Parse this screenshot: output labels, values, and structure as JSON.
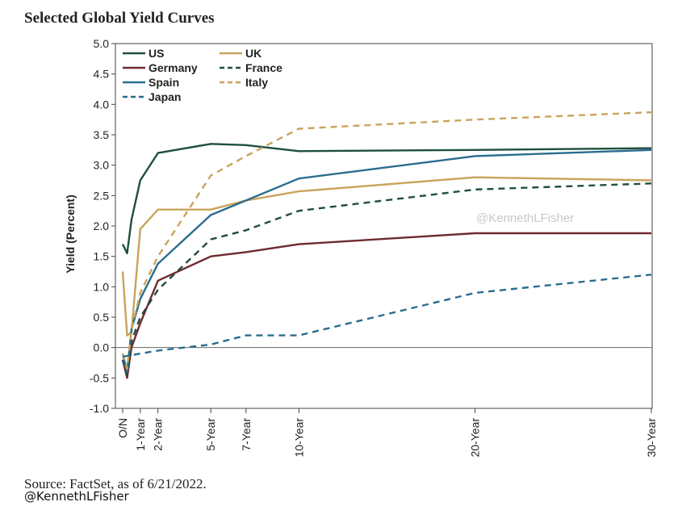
{
  "title": "Selected Global Yield Curves",
  "source": "Source: FactSet, as of 6/21/2022.",
  "handle": "@KennethLFisher",
  "watermark": "@KennethLFisher",
  "chart_data": {
    "type": "line",
    "ylabel": "Yield (Percent)",
    "xlabel": "",
    "ylim": [
      -1.0,
      5.0
    ],
    "yticks": [
      "5.0",
      "4.5",
      "4.0",
      "3.5",
      "3.0",
      "2.5",
      "2.0",
      "1.5",
      "1.0",
      "0.5",
      "0.0",
      "-0.5",
      "-1.0"
    ],
    "ytick_values": [
      5,
      4.5,
      4,
      3.5,
      3,
      2.5,
      2,
      1.5,
      1,
      0.5,
      0,
      -0.5,
      -1
    ],
    "x_categories": [
      {
        "label": "O/N",
        "year": 0
      },
      {
        "label": "1-Year",
        "year": 1
      },
      {
        "label": "2-Year",
        "year": 2
      },
      {
        "label": "5-Year",
        "year": 5
      },
      {
        "label": "7-Year",
        "year": 7
      },
      {
        "label": "10-Year",
        "year": 10
      },
      {
        "label": "20-Year",
        "year": 20
      },
      {
        "label": "30-Year",
        "year": 30
      }
    ],
    "grid": false,
    "legend": "top-left",
    "series": [
      {
        "name": "US",
        "color": "#1f4e3d",
        "dash": false,
        "points": [
          [
            0,
            1.7
          ],
          [
            0.25,
            1.55
          ],
          [
            0.5,
            2.1
          ],
          [
            1,
            2.75
          ],
          [
            2,
            3.2
          ],
          [
            5,
            3.35
          ],
          [
            7,
            3.33
          ],
          [
            10,
            3.23
          ],
          [
            20,
            3.25
          ],
          [
            30,
            3.28
          ]
        ]
      },
      {
        "name": "UK",
        "color": "#c9a35a",
        "dash": false,
        "points": [
          [
            0,
            1.25
          ],
          [
            0.25,
            0.2
          ],
          [
            0.5,
            0.25
          ],
          [
            1,
            1.95
          ],
          [
            2,
            2.27
          ],
          [
            5,
            2.27
          ],
          [
            7,
            2.42
          ],
          [
            10,
            2.57
          ],
          [
            20,
            2.8
          ],
          [
            30,
            2.75
          ]
        ]
      },
      {
        "name": "Germany",
        "color": "#6e2a2f",
        "dash": false,
        "points": [
          [
            0,
            -0.2
          ],
          [
            0.25,
            -0.5
          ],
          [
            0.5,
            0.0
          ],
          [
            1,
            0.4
          ],
          [
            2,
            1.1
          ],
          [
            5,
            1.5
          ],
          [
            7,
            1.57
          ],
          [
            10,
            1.7
          ],
          [
            20,
            1.88
          ],
          [
            30,
            1.88
          ]
        ]
      },
      {
        "name": "France",
        "color": "#1f4e3d",
        "dash": true,
        "points": [
          [
            0,
            -0.2
          ],
          [
            0.25,
            -0.45
          ],
          [
            0.5,
            0.1
          ],
          [
            1,
            0.5
          ],
          [
            2,
            0.95
          ],
          [
            5,
            1.78
          ],
          [
            7,
            1.93
          ],
          [
            10,
            2.25
          ],
          [
            20,
            2.6
          ],
          [
            30,
            2.7
          ]
        ]
      },
      {
        "name": "Spain",
        "color": "#2a6d8f",
        "dash": false,
        "points": [
          [
            0,
            -0.1
          ],
          [
            0.25,
            -0.4
          ],
          [
            0.5,
            0.3
          ],
          [
            1,
            0.8
          ],
          [
            2,
            1.38
          ],
          [
            5,
            2.18
          ],
          [
            7,
            2.42
          ],
          [
            10,
            2.78
          ],
          [
            20,
            3.15
          ],
          [
            30,
            3.25
          ]
        ]
      },
      {
        "name": "Italy",
        "color": "#c9a35a",
        "dash": true,
        "points": [
          [
            0,
            -0.1
          ],
          [
            0.25,
            -0.35
          ],
          [
            0.5,
            0.3
          ],
          [
            1,
            0.9
          ],
          [
            2,
            1.5
          ],
          [
            5,
            2.83
          ],
          [
            7,
            3.15
          ],
          [
            10,
            3.6
          ],
          [
            20,
            3.75
          ],
          [
            30,
            3.87
          ]
        ]
      },
      {
        "name": "Japan",
        "color": "#2a6d8f",
        "dash": true,
        "points": [
          [
            0,
            -0.15
          ],
          [
            1,
            -0.1
          ],
          [
            2,
            -0.05
          ],
          [
            5,
            0.05
          ],
          [
            7,
            0.2
          ],
          [
            10,
            0.2
          ],
          [
            20,
            0.9
          ],
          [
            30,
            1.2
          ]
        ]
      }
    ]
  }
}
